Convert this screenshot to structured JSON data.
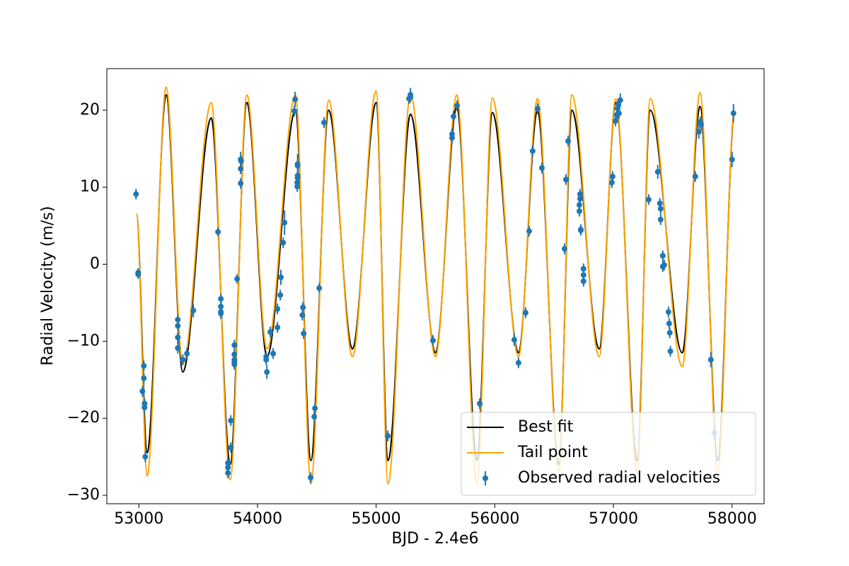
{
  "chart_data": {
    "type": "line",
    "x_label": "BJD - 2.4e6",
    "y_label": "Radial Velocity (m/s)",
    "xlim": [
      52730,
      58270
    ],
    "ylim": [
      -31.1,
      25.4
    ],
    "xticks": [
      53000,
      54000,
      55000,
      56000,
      57000,
      58000
    ],
    "yticks": [
      {
        "value": -30,
        "label": "−30"
      },
      {
        "value": -20,
        "label": "−20"
      },
      {
        "value": -10,
        "label": "−10"
      },
      0,
      10,
      20
    ],
    "grid": false,
    "legend": "lower right",
    "series": [
      {
        "name": "Best fit",
        "type": "line",
        "color": "#000000",
        "x": [
          52980,
          53070,
          53230,
          53370,
          53610,
          53770,
          53910,
          54080,
          54320,
          54450,
          54600,
          54800,
          55000,
          55100,
          55290,
          55500,
          55680,
          55850,
          55980,
          56200,
          56360,
          56540,
          56650,
          56880,
          57020,
          57200,
          57310,
          57580,
          57730,
          57880,
          58020
        ],
        "values": [
          6.5,
          -24.5,
          22,
          -14,
          19,
          -26,
          21,
          -12,
          20,
          -25.5,
          20,
          -11,
          21,
          -25.5,
          19.5,
          -11.5,
          20.5,
          -25.5,
          19.7,
          -11.5,
          20,
          -26,
          20,
          -11,
          21,
          -25.5,
          20,
          -11.5,
          20.5,
          -25.5,
          19.5
        ]
      },
      {
        "name": "Tail point",
        "type": "line",
        "color": "#ffa500",
        "x": [
          52980,
          53070,
          53230,
          53370,
          53610,
          53770,
          53910,
          54080,
          54320,
          54450,
          54600,
          54800,
          55000,
          55100,
          55290,
          55500,
          55680,
          55850,
          55980,
          56200,
          56360,
          56540,
          56650,
          56880,
          57020,
          57200,
          57310,
          57580,
          57730,
          57880,
          58020
        ],
        "values": [
          6.5,
          -27.5,
          23,
          -13,
          21,
          -28,
          22,
          -11,
          22,
          -28.5,
          21.3,
          -12,
          22.5,
          -28.5,
          22,
          -12,
          22,
          -28.5,
          21.6,
          -12,
          21.5,
          -27,
          22,
          -12,
          21.5,
          -27,
          21.5,
          -13.3,
          22.3,
          -27,
          20
        ]
      },
      {
        "name": "Observed radial velocities",
        "type": "errorbar",
        "color": "#1f77b4",
        "x": [
          52976,
          52994,
          52994,
          53030,
          53042,
          53042,
          53048,
          53048,
          53054,
          53328,
          53328,
          53328,
          53328,
          53370,
          53405,
          53459,
          53667,
          53691,
          53691,
          53691,
          53691,
          53751,
          53751,
          53751,
          53775,
          53775,
          53805,
          53805,
          53805,
          53805,
          53805,
          53828,
          53858,
          53858,
          53858,
          53862,
          54073,
          54073,
          54079,
          54108,
          54132,
          54168,
          54168,
          54192,
          54197,
          54216,
          54228,
          54311,
          54317,
          54335,
          54335,
          54338,
          54338,
          54338,
          54338,
          54383,
          54378,
          54389,
          54448,
          54478,
          54484,
          54520,
          54561,
          55098,
          55277,
          55289,
          55289,
          55479,
          55640,
          55640,
          55652,
          55682,
          55873,
          56164,
          56200,
          56260,
          56290,
          56319,
          56361,
          56397,
          56588,
          56600,
          56618,
          56713,
          56713,
          56719,
          56719,
          56725,
          56725,
          56748,
          56748,
          56748,
          56987,
          56993,
          57017,
          57029,
          57035,
          57041,
          57058,
          57047,
          57297,
          57374,
          57392,
          57398,
          57398,
          57416,
          57416,
          57428,
          57464,
          57470,
          57475,
          57480,
          57690,
          57720,
          57732,
          57738,
          57821,
          57851,
          58000,
          58012
        ],
        "values": [
          9.1,
          -1.1,
          -1.3,
          -16.5,
          -14.8,
          -13.2,
          -18.1,
          -18.6,
          -25,
          -7.2,
          -8,
          -9.5,
          -10.9,
          -12.4,
          -11.6,
          -6,
          4.2,
          -4.5,
          -5.5,
          -6.2,
          -6.4,
          -25.8,
          -26.4,
          -27.1,
          -20.3,
          -23.8,
          -10.5,
          -11.7,
          -12.4,
          -12.7,
          -13,
          -1.9,
          10.5,
          12.4,
          13.6,
          13.4,
          -12,
          -12.4,
          -14,
          -8.8,
          -11.6,
          -8.2,
          -5.8,
          -4,
          -1.7,
          2.8,
          5.4,
          19.9,
          21.4,
          10.1,
          10.6,
          11.2,
          12.8,
          11.5,
          13,
          -5.6,
          -6.6,
          -9,
          -27.7,
          -19.8,
          -18.7,
          -3.1,
          18.4,
          -22.3,
          21.5,
          22,
          21.7,
          -9.9,
          16.4,
          16.9,
          19.2,
          20.6,
          -18.1,
          -9.8,
          -12.8,
          -6.3,
          4.3,
          14.7,
          20.2,
          12.5,
          2,
          11,
          16,
          7.7,
          6.9,
          8.5,
          9.1,
          4.5,
          4.4,
          -0.6,
          -1.4,
          -2.2,
          10.6,
          11.4,
          18.6,
          19.4,
          20.2,
          20.8,
          21.3,
          19.6,
          8.4,
          12,
          7.9,
          7.2,
          5.8,
          1.1,
          -0.3,
          -0.1,
          -6.2,
          -7.7,
          -8.9,
          -11.3,
          11.4,
          17.2,
          18.5,
          18.1,
          -12.4,
          -21.9,
          13.6,
          19.6
        ],
        "errors": [
          0.7,
          0.6,
          0.6,
          0.7,
          0.7,
          0.7,
          0.7,
          0.7,
          0.7,
          0.7,
          0.7,
          0.7,
          0.7,
          0.7,
          0.7,
          0.9,
          0.6,
          0.7,
          0.7,
          0.7,
          0.7,
          0.7,
          0.7,
          0.7,
          0.7,
          0.7,
          0.7,
          0.7,
          0.7,
          0.7,
          0.7,
          0.6,
          0.7,
          0.7,
          1.0,
          0.7,
          0.7,
          0.7,
          0.9,
          0.7,
          0.7,
          0.7,
          0.7,
          0.7,
          1.0,
          0.7,
          1.6,
          0.7,
          1.0,
          0.7,
          0.7,
          0.7,
          0.7,
          0.7,
          1.3,
          0.7,
          0.7,
          0.7,
          0.7,
          0.7,
          0.7,
          0.6,
          0.7,
          0.7,
          0.7,
          0.9,
          0.7,
          0.7,
          0.7,
          0.7,
          0.7,
          0.7,
          0.7,
          0.8,
          0.7,
          0.7,
          0.7,
          0.7,
          0.7,
          0.7,
          0.7,
          0.7,
          0.7,
          0.7,
          0.7,
          0.7,
          0.7,
          0.7,
          0.7,
          0.7,
          0.7,
          0.7,
          0.7,
          0.7,
          0.7,
          0.7,
          0.7,
          0.7,
          0.9,
          0.7,
          0.7,
          0.9,
          0.7,
          0.7,
          0.7,
          0.7,
          0.7,
          0.7,
          0.7,
          0.7,
          0.7,
          0.7,
          0.7,
          0.9,
          0.7,
          0.7,
          1.0,
          0.9,
          1.0,
          1.2
        ]
      }
    ]
  }
}
